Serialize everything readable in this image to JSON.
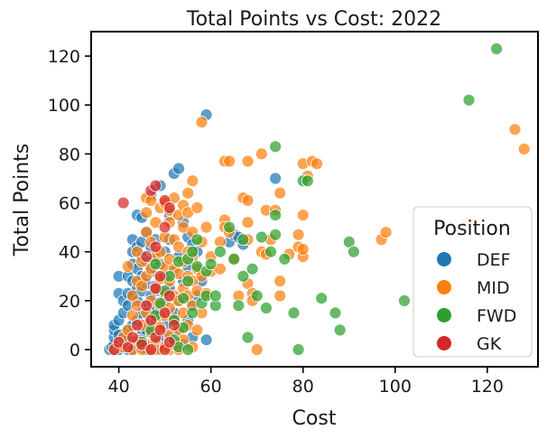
{
  "chart_data": {
    "type": "scatter",
    "title": "Total Points vs Cost: 2022",
    "xlabel": "Cost",
    "ylabel": "Total Points",
    "xlim": [
      34,
      131
    ],
    "ylim": [
      -7,
      130
    ],
    "xticks": [
      40,
      60,
      80,
      100,
      120
    ],
    "yticks": [
      0,
      20,
      40,
      60,
      80,
      100,
      120
    ],
    "grid": false,
    "legend": {
      "title": "Position",
      "placement": "lower-right"
    },
    "colors": {
      "DEF": "#1f77b4",
      "MID": "#ff7f0e",
      "FWD": "#2ca02c",
      "GK": "#d62728"
    },
    "series": [
      {
        "name": "DEF",
        "points": [
          [
            38,
            0
          ],
          [
            38.5,
            1
          ],
          [
            39,
            0
          ],
          [
            39,
            2
          ],
          [
            39,
            5
          ],
          [
            39,
            8
          ],
          [
            39,
            10
          ],
          [
            40,
            0
          ],
          [
            40,
            3
          ],
          [
            40,
            6
          ],
          [
            40,
            12
          ],
          [
            40,
            23
          ],
          [
            40,
            30
          ],
          [
            41,
            1
          ],
          [
            41,
            5
          ],
          [
            41,
            15
          ],
          [
            41,
            20
          ],
          [
            42,
            0
          ],
          [
            42,
            2
          ],
          [
            42,
            4
          ],
          [
            42,
            8
          ],
          [
            42,
            18
          ],
          [
            42,
            23
          ],
          [
            42,
            30
          ],
          [
            43,
            0
          ],
          [
            43,
            10
          ],
          [
            43,
            22
          ],
          [
            43,
            28
          ],
          [
            43,
            35
          ],
          [
            43,
            40
          ],
          [
            43,
            45
          ],
          [
            44,
            3
          ],
          [
            44,
            12
          ],
          [
            44,
            20
          ],
          [
            44,
            25
          ],
          [
            44,
            33
          ],
          [
            44,
            42
          ],
          [
            44,
            55
          ],
          [
            45,
            1
          ],
          [
            45,
            6
          ],
          [
            45,
            15
          ],
          [
            45,
            24
          ],
          [
            45,
            30
          ],
          [
            45,
            38
          ],
          [
            45,
            44
          ],
          [
            45,
            54
          ],
          [
            46,
            0
          ],
          [
            46,
            8
          ],
          [
            46,
            18
          ],
          [
            46,
            27
          ],
          [
            46,
            36
          ],
          [
            46,
            48
          ],
          [
            47,
            2
          ],
          [
            47,
            12
          ],
          [
            47,
            22
          ],
          [
            47,
            32
          ],
          [
            47,
            42
          ],
          [
            47,
            63
          ],
          [
            48,
            0
          ],
          [
            48,
            6
          ],
          [
            48,
            16
          ],
          [
            48,
            26
          ],
          [
            48,
            37
          ],
          [
            48,
            45
          ],
          [
            49,
            4
          ],
          [
            49,
            14
          ],
          [
            49,
            24
          ],
          [
            49,
            35
          ],
          [
            49,
            67
          ],
          [
            50,
            1
          ],
          [
            50,
            10
          ],
          [
            50,
            20
          ],
          [
            50,
            30
          ],
          [
            50,
            40
          ],
          [
            51,
            5
          ],
          [
            51,
            25
          ],
          [
            51,
            45
          ],
          [
            51,
            55
          ],
          [
            52,
            3
          ],
          [
            52,
            15
          ],
          [
            52,
            32
          ],
          [
            52,
            72
          ],
          [
            53,
            8
          ],
          [
            53,
            20
          ],
          [
            53,
            38
          ],
          [
            53,
            74
          ],
          [
            54,
            2
          ],
          [
            54,
            28
          ],
          [
            54,
            52
          ],
          [
            55,
            12
          ],
          [
            55,
            34
          ],
          [
            55,
            46
          ],
          [
            56,
            5
          ],
          [
            56,
            18
          ],
          [
            56,
            43
          ],
          [
            57,
            22
          ],
          [
            57,
            40
          ],
          [
            58,
            28
          ],
          [
            59,
            4
          ],
          [
            59,
            96
          ],
          [
            64,
            44
          ],
          [
            65,
            47
          ],
          [
            66,
            46
          ],
          [
            67,
            43
          ],
          [
            74,
            70
          ]
        ]
      },
      {
        "name": "MID",
        "points": [
          [
            39,
            0
          ],
          [
            40,
            2
          ],
          [
            41,
            1
          ],
          [
            41,
            5
          ],
          [
            42,
            8
          ],
          [
            42,
            34
          ],
          [
            43,
            0
          ],
          [
            43,
            14
          ],
          [
            43,
            22
          ],
          [
            44,
            4
          ],
          [
            44,
            18
          ],
          [
            44,
            28
          ],
          [
            44,
            40
          ],
          [
            45,
            0
          ],
          [
            45,
            10
          ],
          [
            45,
            26
          ],
          [
            45,
            36
          ],
          [
            46,
            2
          ],
          [
            46,
            15
          ],
          [
            46,
            30
          ],
          [
            46,
            48
          ],
          [
            46,
            56
          ],
          [
            46,
            62
          ],
          [
            47,
            0
          ],
          [
            47,
            7
          ],
          [
            47,
            20
          ],
          [
            47,
            33
          ],
          [
            47,
            44
          ],
          [
            47,
            61
          ],
          [
            48,
            3
          ],
          [
            48,
            12
          ],
          [
            48,
            25
          ],
          [
            48,
            38
          ],
          [
            48,
            52
          ],
          [
            49,
            0
          ],
          [
            49,
            9
          ],
          [
            49,
            18
          ],
          [
            49,
            29
          ],
          [
            49,
            40
          ],
          [
            49,
            58
          ],
          [
            50,
            1
          ],
          [
            50,
            14
          ],
          [
            50,
            23
          ],
          [
            50,
            34
          ],
          [
            50,
            46
          ],
          [
            50,
            60
          ],
          [
            51,
            0
          ],
          [
            51,
            6
          ],
          [
            51,
            17
          ],
          [
            51,
            28
          ],
          [
            51,
            37
          ],
          [
            51,
            52
          ],
          [
            51,
            57
          ],
          [
            52,
            2
          ],
          [
            52,
            12
          ],
          [
            52,
            22
          ],
          [
            52,
            33
          ],
          [
            52,
            45
          ],
          [
            52,
            62
          ],
          [
            53,
            0
          ],
          [
            53,
            8
          ],
          [
            53,
            20
          ],
          [
            53,
            31
          ],
          [
            53,
            42
          ],
          [
            53,
            55
          ],
          [
            54,
            4
          ],
          [
            54,
            15
          ],
          [
            54,
            25
          ],
          [
            54,
            36
          ],
          [
            54,
            50
          ],
          [
            54,
            59
          ],
          [
            55,
            10
          ],
          [
            55,
            22
          ],
          [
            55,
            30
          ],
          [
            55,
            40
          ],
          [
            55,
            56
          ],
          [
            55,
            64
          ],
          [
            56,
            1
          ],
          [
            56,
            18
          ],
          [
            56,
            28
          ],
          [
            56,
            38
          ],
          [
            56,
            48
          ],
          [
            56,
            69
          ],
          [
            57,
            8
          ],
          [
            57,
            24
          ],
          [
            57,
            33
          ],
          [
            57,
            58
          ],
          [
            58,
            15
          ],
          [
            58,
            30
          ],
          [
            58,
            44
          ],
          [
            58,
            93
          ],
          [
            59,
            23
          ],
          [
            59,
            50
          ],
          [
            60,
            32
          ],
          [
            60,
            38
          ],
          [
            62,
            33
          ],
          [
            62,
            44
          ],
          [
            63,
            53
          ],
          [
            63,
            50
          ],
          [
            63,
            77
          ],
          [
            64,
            77
          ],
          [
            64,
            48
          ],
          [
            65,
            37
          ],
          [
            66,
            22
          ],
          [
            67,
            62
          ],
          [
            68,
            52
          ],
          [
            68,
            61
          ],
          [
            68,
            45
          ],
          [
            68,
            27
          ],
          [
            68,
            77
          ],
          [
            69,
            23
          ],
          [
            69,
            20
          ],
          [
            70,
            0
          ],
          [
            71,
            80
          ],
          [
            71,
            40
          ],
          [
            72,
            57
          ],
          [
            72,
            39
          ],
          [
            73,
            45
          ],
          [
            74,
            57
          ],
          [
            75,
            64
          ],
          [
            75,
            22
          ],
          [
            75,
            28
          ],
          [
            77,
            39
          ],
          [
            79,
            42
          ],
          [
            79,
            47
          ],
          [
            80,
            76
          ],
          [
            80,
            55
          ],
          [
            80,
            38
          ],
          [
            80,
            41
          ],
          [
            81,
            71
          ],
          [
            82,
            77
          ],
          [
            83,
            76
          ],
          [
            97,
            45
          ],
          [
            98,
            48
          ],
          [
            116,
            52
          ],
          [
            126,
            90
          ],
          [
            128,
            82
          ]
        ]
      },
      {
        "name": "FWD",
        "points": [
          [
            45,
            3
          ],
          [
            47,
            8
          ],
          [
            48,
            14
          ],
          [
            48,
            35
          ],
          [
            49,
            19
          ],
          [
            50,
            24
          ],
          [
            51,
            30
          ],
          [
            52,
            12
          ],
          [
            52,
            4
          ],
          [
            53,
            1
          ],
          [
            53,
            36
          ],
          [
            54,
            9
          ],
          [
            54,
            21
          ],
          [
            55,
            0
          ],
          [
            55,
            28
          ],
          [
            55,
            37
          ],
          [
            56,
            15
          ],
          [
            56,
            40
          ],
          [
            57,
            34
          ],
          [
            57,
            45
          ],
          [
            58,
            19
          ],
          [
            59,
            22
          ],
          [
            59,
            32
          ],
          [
            60,
            35
          ],
          [
            61,
            18
          ],
          [
            61,
            22
          ],
          [
            62,
            40
          ],
          [
            64,
            50
          ],
          [
            65,
            37
          ],
          [
            66,
            18
          ],
          [
            67,
            30
          ],
          [
            67,
            45
          ],
          [
            68,
            5
          ],
          [
            69,
            33
          ],
          [
            70,
            22
          ],
          [
            71,
            46
          ],
          [
            72,
            17
          ],
          [
            73,
            40
          ],
          [
            74,
            83
          ],
          [
            74,
            55
          ],
          [
            74,
            47
          ],
          [
            76,
            37
          ],
          [
            78,
            15
          ],
          [
            79,
            0
          ],
          [
            80,
            69
          ],
          [
            81,
            69
          ],
          [
            84,
            21
          ],
          [
            87,
            15
          ],
          [
            88,
            8
          ],
          [
            90,
            44
          ],
          [
            91,
            40
          ],
          [
            102,
            20
          ],
          [
            116,
            102
          ],
          [
            122,
            123
          ]
        ]
      },
      {
        "name": "GK",
        "points": [
          [
            39,
            0
          ],
          [
            40,
            3
          ],
          [
            41,
            60
          ],
          [
            42,
            1
          ],
          [
            43,
            5
          ],
          [
            44,
            10
          ],
          [
            45,
            2
          ],
          [
            46,
            38
          ],
          [
            46,
            18
          ],
          [
            47,
            0
          ],
          [
            47,
            12
          ],
          [
            47,
            65
          ],
          [
            48,
            5
          ],
          [
            48,
            67
          ],
          [
            48,
            42
          ],
          [
            48,
            25
          ],
          [
            49,
            8
          ],
          [
            49,
            30
          ],
          [
            50,
            0
          ],
          [
            50,
            15
          ],
          [
            50,
            50
          ],
          [
            50,
            61
          ],
          [
            51,
            3
          ],
          [
            51,
            58
          ],
          [
            51,
            22
          ],
          [
            52,
            10
          ]
        ]
      }
    ]
  }
}
